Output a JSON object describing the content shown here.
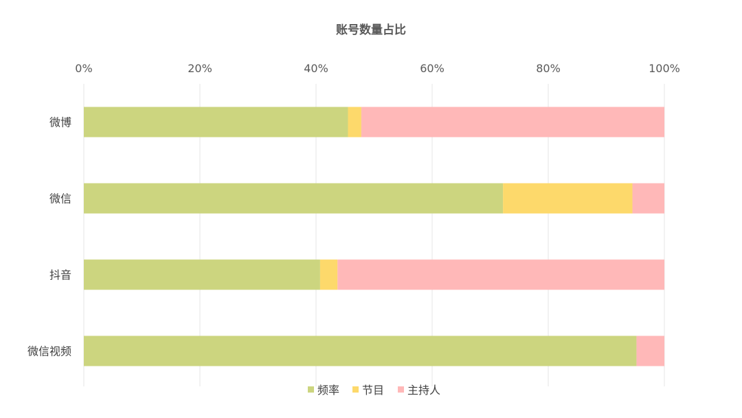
{
  "chart_data": {
    "type": "bar",
    "orientation": "horizontal",
    "stacked": "percent",
    "title": "账号数量占比",
    "categories": [
      "微博",
      "微信",
      "抖音",
      "微信视频"
    ],
    "series": [
      {
        "name": "频率",
        "color": "#ccd57f",
        "values": [
          45.5,
          72.2,
          40.7,
          95.2
        ]
      },
      {
        "name": "节目",
        "color": "#fdd96b",
        "values": [
          2.3,
          22.3,
          3.0,
          0
        ]
      },
      {
        "name": "主持人",
        "color": "#ffb8b8",
        "values": [
          52.2,
          5.5,
          56.3,
          4.8
        ]
      }
    ],
    "x_ticks": [
      "0%",
      "20%",
      "40%",
      "60%",
      "80%",
      "100%"
    ],
    "xlim": [
      0,
      100
    ],
    "xlabel": "",
    "ylabel": "",
    "x_axis_position": "top",
    "grid": "vertical",
    "legend": "bottom"
  }
}
